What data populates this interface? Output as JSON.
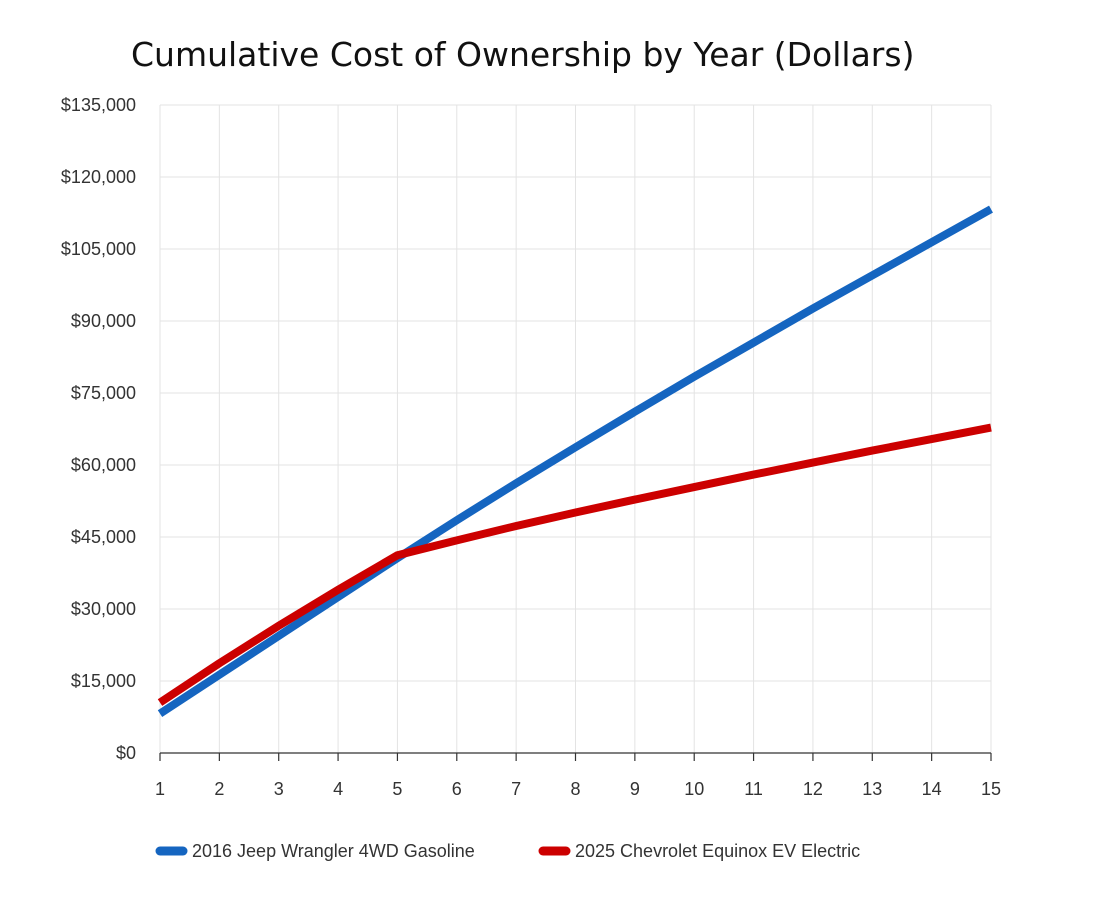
{
  "chart_data": {
    "type": "line",
    "title": "Cumulative Cost of Ownership by Year (Dollars)",
    "xlabel": "",
    "ylabel": "",
    "x": [
      1,
      2,
      3,
      4,
      5,
      6,
      7,
      8,
      9,
      10,
      11,
      12,
      13,
      14,
      15
    ],
    "xlim": [
      1,
      15
    ],
    "ylim": [
      0,
      135000
    ],
    "yticks": [
      0,
      15000,
      30000,
      45000,
      60000,
      75000,
      90000,
      105000,
      120000,
      135000
    ],
    "ytick_labels": [
      "$0",
      "$15,000",
      "$30,000",
      "$45,000",
      "$60,000",
      "$75,000",
      "$90,000",
      "$105,000",
      "$120,000",
      "$135,000"
    ],
    "grid": true,
    "legend_position": "bottom",
    "series": [
      {
        "name": "2016 Jeep Wrangler 4WD Gasoline",
        "color": "#1565c0",
        "values": [
          8200,
          16300,
          24400,
          32500,
          40600,
          48500,
          56200,
          63700,
          71100,
          78400,
          85500,
          92600,
          99500,
          106400,
          113300
        ]
      },
      {
        "name": "2025 Chevrolet Equinox EV Electric",
        "color": "#cc0000",
        "values": [
          10500,
          18700,
          26500,
          34000,
          41200,
          44300,
          47300,
          50100,
          52800,
          55400,
          58000,
          60500,
          63000,
          65400,
          67800
        ]
      }
    ]
  }
}
